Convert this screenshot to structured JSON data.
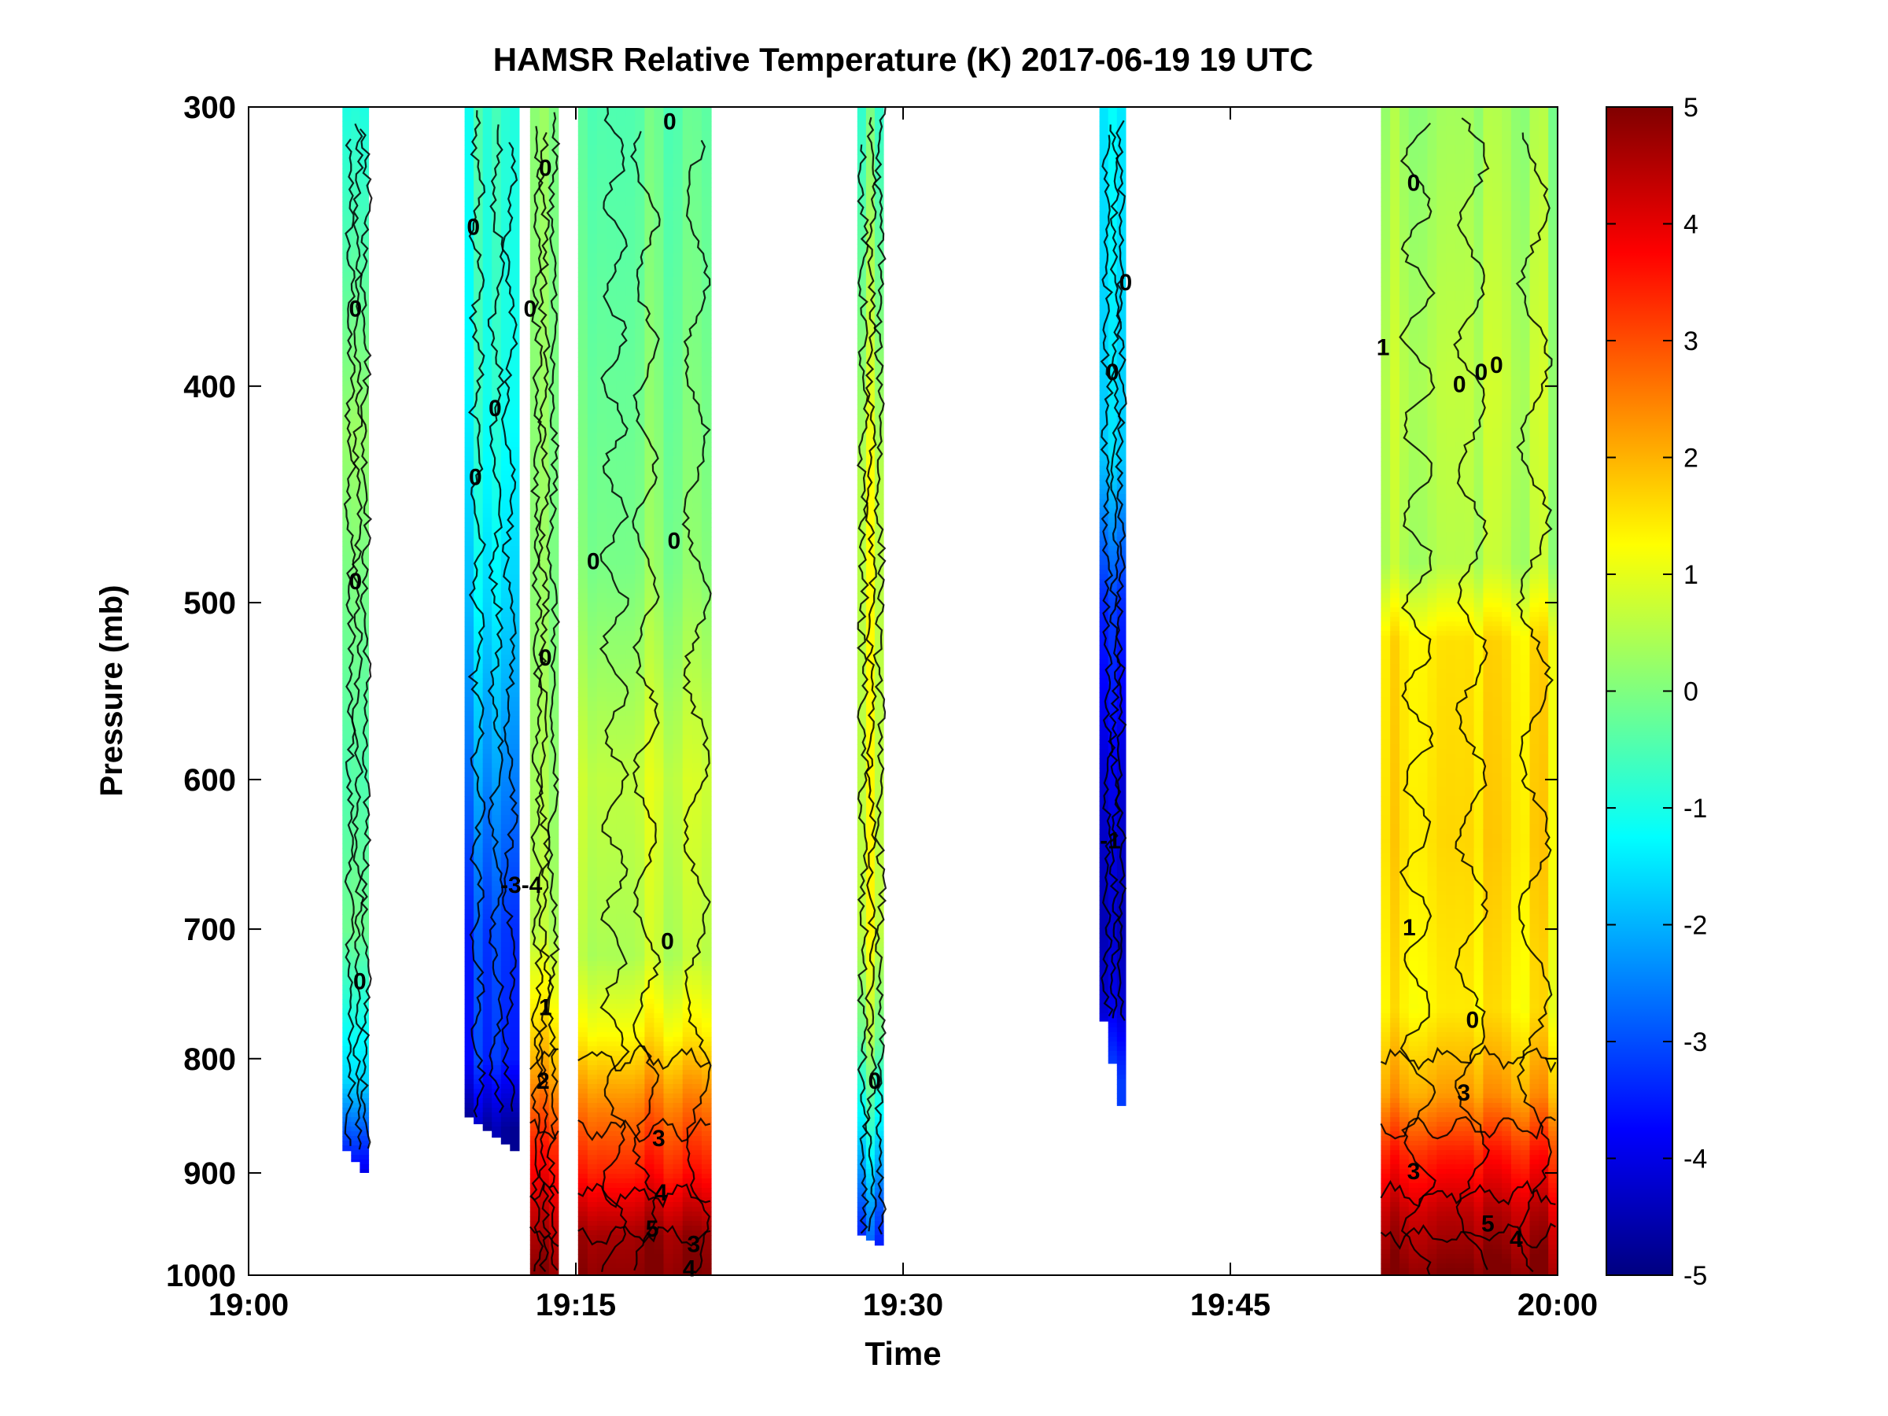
{
  "chart_data": {
    "type": "heatmap",
    "title": "HAMSR  Relative Temperature (K) 2017-06-19 19 UTC",
    "xlabel": "Time",
    "ylabel": "Pressure (mb)",
    "x_ticks": [
      "19:00",
      "19:15",
      "19:30",
      "19:45",
      "20:00"
    ],
    "x_range_minutes": [
      0,
      60
    ],
    "y_ticks": [
      300,
      400,
      500,
      600,
      700,
      800,
      900,
      1000
    ],
    "y_range": [
      300,
      1000
    ],
    "y_scale": "log",
    "y_direction": "reversed",
    "colorbar": {
      "ticks": [
        5,
        4,
        3,
        2,
        1,
        0,
        -1,
        -2,
        -3,
        -4,
        -5
      ],
      "range": [
        -5,
        5
      ],
      "colormap": "jet",
      "placement": "right"
    },
    "swaths": [
      {
        "start_min": 4.3,
        "end_min": 5.5,
        "profile": [
          [
            300,
            -0.8
          ],
          [
            420,
            0.4
          ],
          [
            600,
            -0.3
          ],
          [
            700,
            0.0
          ],
          [
            820,
            -1.5
          ],
          [
            900,
            -3.8
          ]
        ],
        "bottom_mb": [
          880,
          900
        ]
      },
      {
        "start_min": 9.9,
        "end_min": 12.4,
        "profile": [
          [
            300,
            -0.6
          ],
          [
            400,
            -0.8
          ],
          [
            500,
            -1.4
          ],
          [
            600,
            -2.2
          ],
          [
            700,
            -3.0
          ],
          [
            800,
            -3.2
          ],
          [
            860,
            -4.5
          ]
        ],
        "bottom_mb": [
          850,
          880
        ]
      },
      {
        "start_min": 12.9,
        "end_min": 14.2,
        "profile": [
          [
            300,
            0.2
          ],
          [
            500,
            0.2
          ],
          [
            700,
            0.6
          ],
          [
            800,
            2.0
          ],
          [
            880,
            3.6
          ],
          [
            950,
            4.5
          ],
          [
            1000,
            5.0
          ]
        ],
        "bottom_mb": [
          1000,
          1000
        ]
      },
      {
        "start_min": 15.1,
        "end_min": 21.2,
        "profile": [
          [
            300,
            -0.3
          ],
          [
            480,
            0.1
          ],
          [
            600,
            0.8
          ],
          [
            720,
            0.6
          ],
          [
            780,
            1.4
          ],
          [
            850,
            2.8
          ],
          [
            900,
            3.6
          ],
          [
            960,
            4.8
          ],
          [
            1000,
            5.0
          ]
        ],
        "bottom_mb": [
          1000,
          1000
        ]
      },
      {
        "start_min": 27.9,
        "end_min": 29.1,
        "profile": [
          [
            300,
            -0.3
          ],
          [
            440,
            1.0
          ],
          [
            700,
            1.1
          ],
          [
            780,
            0.3
          ],
          [
            860,
            -1.0
          ],
          [
            940,
            -2.6
          ],
          [
            1000,
            -3.5
          ]
        ],
        "bottom_mb": [
          960,
          970
        ]
      },
      {
        "start_min": 39.0,
        "end_min": 40.2,
        "profile": [
          [
            300,
            -1.3
          ],
          [
            430,
            -1.6
          ],
          [
            500,
            -3.2
          ],
          [
            600,
            -4.0
          ],
          [
            700,
            -4.3
          ],
          [
            760,
            -4.0
          ],
          [
            820,
            -3.0
          ]
        ],
        "bottom_mb": [
          770,
          840
        ]
      },
      {
        "start_min": 51.9,
        "end_min": 60.0,
        "profile": [
          [
            300,
            0.3
          ],
          [
            400,
            0.6
          ],
          [
            480,
            0.5
          ],
          [
            520,
            1.5
          ],
          [
            640,
            1.6
          ],
          [
            760,
            1.4
          ],
          [
            830,
            2.2
          ],
          [
            880,
            3.4
          ],
          [
            940,
            4.4
          ],
          [
            1000,
            5.0
          ]
        ],
        "bottom_mb": [
          1000,
          1000
        ]
      }
    ],
    "contour_labels": [
      {
        "text": "0",
        "time_min": 10.3,
        "p": 340
      },
      {
        "text": "0",
        "time_min": 12.9,
        "p": 370
      },
      {
        "text": "0",
        "time_min": 13.6,
        "p": 320
      },
      {
        "text": "0",
        "time_min": 4.9,
        "p": 370
      },
      {
        "text": "0",
        "time_min": 10.4,
        "p": 440
      },
      {
        "text": "0",
        "time_min": 11.3,
        "p": 410
      },
      {
        "text": "0",
        "time_min": 4.9,
        "p": 490
      },
      {
        "text": "0",
        "time_min": 13.6,
        "p": 530
      },
      {
        "text": "0",
        "time_min": 15.8,
        "p": 480
      },
      {
        "text": "0",
        "time_min": 19.5,
        "p": 470
      },
      {
        "text": "0",
        "time_min": 19.3,
        "p": 305
      },
      {
        "text": "-3-4",
        "time_min": 12.5,
        "p": 670
      },
      {
        "text": "0",
        "time_min": 5.1,
        "p": 740
      },
      {
        "text": "0",
        "time_min": 19.2,
        "p": 710
      },
      {
        "text": "1",
        "time_min": 13.6,
        "p": 760
      },
      {
        "text": "2",
        "time_min": 13.5,
        "p": 820
      },
      {
        "text": "0",
        "time_min": 28.7,
        "p": 820
      },
      {
        "text": "0",
        "time_min": 39.6,
        "p": 395
      },
      {
        "text": "0",
        "time_min": 40.2,
        "p": 360
      },
      {
        "text": "1",
        "time_min": 52.0,
        "p": 385
      },
      {
        "text": "0",
        "time_min": 53.4,
        "p": 325
      },
      {
        "text": "0",
        "time_min": 55.5,
        "p": 400
      },
      {
        "text": "0",
        "time_min": 56.5,
        "p": 395
      },
      {
        "text": "0",
        "time_min": 57.2,
        "p": 392
      },
      {
        "text": "1",
        "time_min": 53.2,
        "p": 700
      },
      {
        "text": "0",
        "time_min": 56.1,
        "p": 770
      },
      {
        "text": "3",
        "time_min": 55.7,
        "p": 830
      },
      {
        "text": "3",
        "time_min": 53.4,
        "p": 900
      },
      {
        "text": "5",
        "time_min": 56.8,
        "p": 950
      },
      {
        "text": "4",
        "time_min": 58.1,
        "p": 965
      },
      {
        "text": "3",
        "time_min": 18.8,
        "p": 870
      },
      {
        "text": "4",
        "time_min": 18.9,
        "p": 920
      },
      {
        "text": "5",
        "time_min": 18.5,
        "p": 955
      },
      {
        "text": "4",
        "time_min": 20.2,
        "p": 995
      },
      {
        "text": "3",
        "time_min": 20.4,
        "p": 970
      },
      {
        "text": "-1",
        "time_min": 39.5,
        "p": 640
      }
    ]
  }
}
